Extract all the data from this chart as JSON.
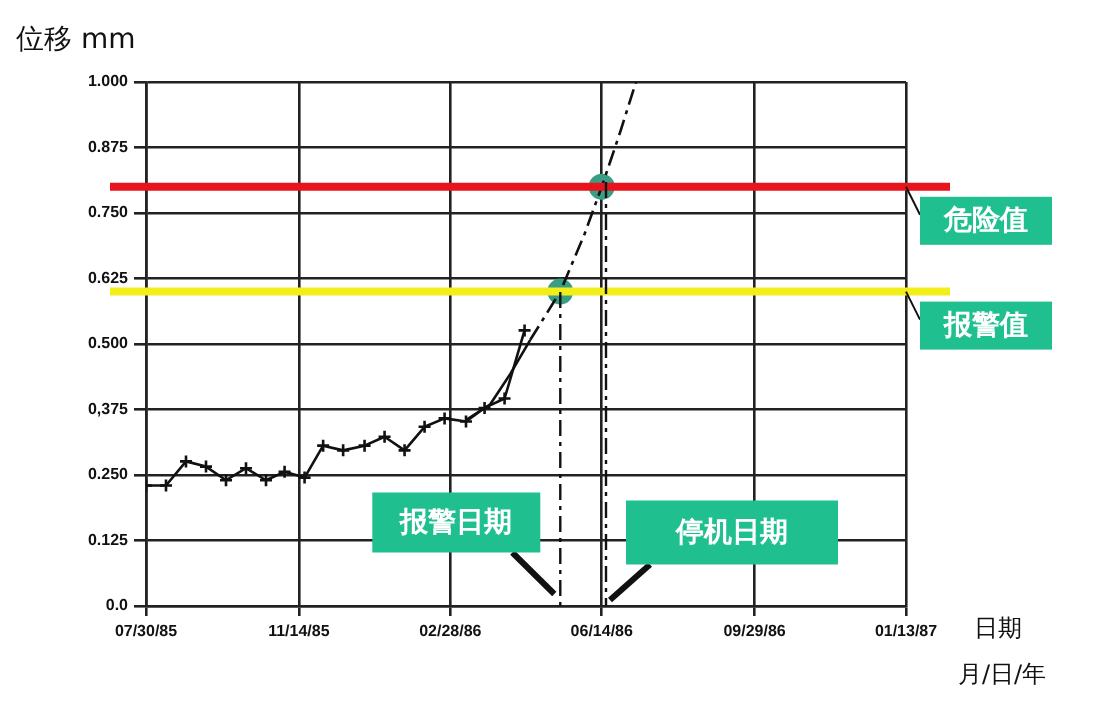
{
  "chart_data": {
    "type": "line",
    "ylabel": "位移 mm",
    "xlabel": "日期",
    "annotations": [
      "月/日/年"
    ],
    "xlim": [
      "1985-07-30",
      "1987-01-13"
    ],
    "xticks": [
      {
        "value": "1985-07-30",
        "label": "07/30/85"
      },
      {
        "value": "1985-11-14",
        "label": "11/14/85"
      },
      {
        "value": "1986-02-28",
        "label": "02/28/86"
      },
      {
        "value": "1986-06-14",
        "label": "06/14/86"
      },
      {
        "value": "1986-09-29",
        "label": "09/29/86"
      },
      {
        "value": "1987-01-13",
        "label": "01/13/87"
      }
    ],
    "ylim": [
      0,
      1
    ],
    "yticks": [
      {
        "value": 0,
        "label": "0.0"
      },
      {
        "value": 0.125,
        "label": "0.125"
      },
      {
        "value": 0.25,
        "label": "0.250"
      },
      {
        "value": 0.375,
        "label": "0,375"
      },
      {
        "value": 0.5,
        "label": "0.500"
      },
      {
        "value": 0.625,
        "label": "0.625"
      },
      {
        "value": 0.75,
        "label": "0.750"
      },
      {
        "value": 0.875,
        "label": "0.875"
      },
      {
        "value": 1,
        "label": "1.000"
      }
    ],
    "grid": true,
    "legend": false,
    "series": [
      {
        "color": "#111111",
        "marker": "cross",
        "x": [
          "1985-07-30",
          "1985-08-13",
          "1985-08-27",
          "1985-09-10",
          "1985-09-24",
          "1985-10-08",
          "1985-10-22",
          "1985-11-04",
          "1985-11-18",
          "1985-12-01",
          "1985-12-15",
          "1985-12-30",
          "1986-01-13",
          "1986-01-27",
          "1986-02-10",
          "1986-02-24",
          "1986-03-11",
          "1986-03-24",
          "1986-04-07",
          "1986-04-21"
        ],
        "values": [
          0.23,
          0.23,
          0.276,
          0.266,
          0.24,
          0.263,
          0.24,
          0.256,
          0.245,
          0.306,
          0.297,
          0.306,
          0.323,
          0.297,
          0.342,
          0.358,
          0.352,
          0.378,
          0.396,
          0.526
        ]
      },
      {
        "color": "#111111",
        "marker": "none",
        "x": [
          "1986-03-11",
          "1986-03-28",
          "1986-04-11",
          "1986-04-25"
        ],
        "values": [
          0.355,
          0.385,
          0.443,
          0.508
        ]
      },
      {
        "color": "#111111",
        "marker": "none",
        "line_style": "dashed",
        "x": [
          "1986-04-25",
          "1986-05-16",
          "1986-06-02",
          "1986-06-14",
          "1986-06-27",
          "1986-07-08"
        ],
        "values": [
          0.508,
          0.6,
          0.71,
          0.8,
          0.905,
          1
        ]
      },
      {
        "type": "scatter",
        "color": "#3a9e86",
        "marker": "circle",
        "x": [
          "1986-05-16",
          "1986-06-14"
        ],
        "values": [
          0.6,
          0.8
        ]
      }
    ],
    "ref_lines": [
      {
        "axis": "y",
        "value": 0.8,
        "label": "危险值",
        "color": "#e8141b"
      },
      {
        "axis": "y",
        "value": 0.6,
        "label": "报警值",
        "color": "#f2ee1a"
      },
      {
        "axis": "x",
        "value": "1986-05-16",
        "label": "报警日期",
        "color": "#111111",
        "line_style": "dashed"
      },
      {
        "axis": "x",
        "value": "1986-06-17",
        "label": "停机日期",
        "color": "#111111",
        "line_style": "dashed"
      }
    ]
  }
}
